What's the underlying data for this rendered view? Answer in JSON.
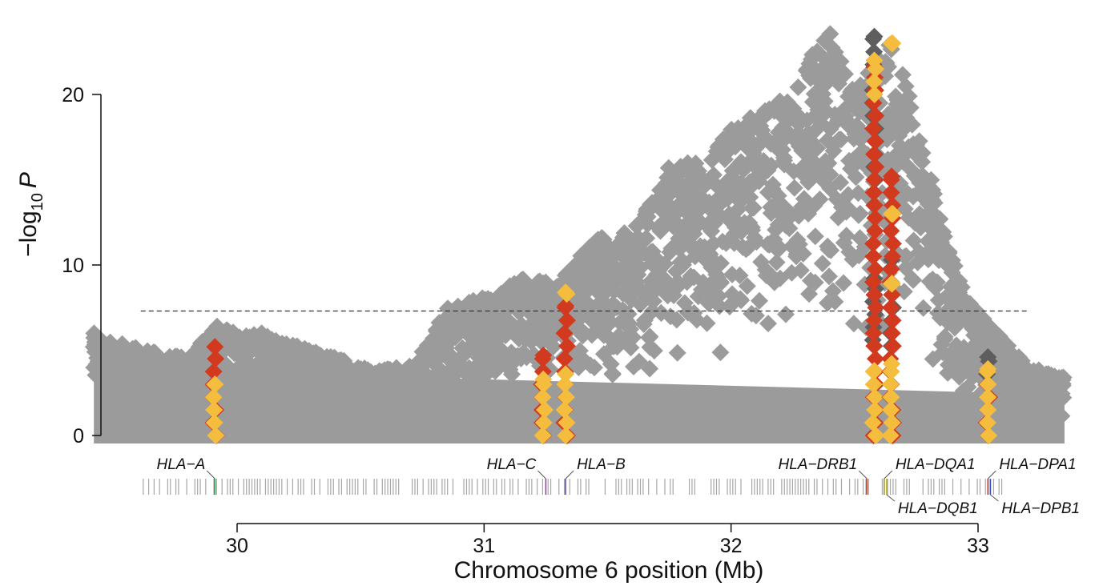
{
  "chart_data": {
    "type": "scatter",
    "title": "",
    "xlabel": "Chromosome 6 position (Mb)",
    "ylabel_parts": [
      "−log",
      "10",
      "P"
    ],
    "xlim": [
      29.42,
      33.35
    ],
    "ylim": [
      0,
      25
    ],
    "x_ticks": [
      30,
      31,
      32,
      33
    ],
    "x_tick_labels": [
      "30",
      "31",
      "32",
      "33"
    ],
    "y_ticks": [
      0,
      10,
      20
    ],
    "y_tick_labels": [
      "0",
      "10",
      "20"
    ],
    "significance_threshold": 7.3,
    "grid": false,
    "legend": "none",
    "colors": {
      "background_variants": "#9b9b9b",
      "dark_gray": "#5e5e5e",
      "red": "#d23a1f",
      "yellow": "#f4bd3d",
      "gene_tick": "#a6a6a6"
    },
    "highlight_columns": [
      {
        "x": 29.91,
        "top": 5.2,
        "groups": [
          {
            "color": "red",
            "min": 0,
            "max": 5.2
          },
          {
            "color": "yellow",
            "min": 0,
            "max": 3.0
          }
        ]
      },
      {
        "x": 31.24,
        "top": 4.7,
        "groups": [
          {
            "color": "red",
            "min": 0,
            "max": 4.7
          },
          {
            "color": "yellow",
            "min": 0,
            "max": 3.3
          }
        ]
      },
      {
        "x": 31.33,
        "top": 8.4,
        "groups": [
          {
            "color": "red",
            "min": 0,
            "max": 7.6
          },
          {
            "color": "yellow",
            "min": 0,
            "max": 3.6
          },
          {
            "color": "yellow",
            "min": 8.3,
            "max": 8.4
          }
        ]
      },
      {
        "x": 32.58,
        "top": 23.4,
        "groups": [
          {
            "color": "dark",
            "min": 13.5,
            "max": 23.4
          },
          {
            "color": "dark",
            "min": 5.6,
            "max": 9.2
          },
          {
            "color": "red",
            "min": 0,
            "max": 21.6
          },
          {
            "color": "yellow",
            "min": 0,
            "max": 3.8
          },
          {
            "color": "yellow",
            "min": 20.0,
            "max": 22.0
          }
        ]
      },
      {
        "x": 32.65,
        "top": 23.0,
        "groups": [
          {
            "color": "dark",
            "min": 4.5,
            "max": 10.3
          },
          {
            "color": "red",
            "min": 0,
            "max": 15.2
          },
          {
            "color": "yellow",
            "min": 0,
            "max": 4.2
          },
          {
            "color": "yellow",
            "min": 8.9,
            "max": 8.9
          },
          {
            "color": "yellow",
            "min": 13.0,
            "max": 13.0
          },
          {
            "color": "yellow",
            "min": 23.0,
            "max": 23.0
          }
        ]
      },
      {
        "x": 33.04,
        "top": 4.6,
        "groups": [
          {
            "color": "dark",
            "min": 3.6,
            "max": 4.6
          },
          {
            "color": "red",
            "min": 0,
            "max": 3.9
          },
          {
            "color": "yellow",
            "min": 0,
            "max": 3.9
          }
        ]
      }
    ],
    "gene_labels": [
      {
        "name": "HLA−A",
        "x": 29.91,
        "row": "top",
        "anchor": "end",
        "color": "#2e9e4f"
      },
      {
        "name": "HLA−C",
        "x": 31.25,
        "row": "top",
        "anchor": "end",
        "color": "#a03ca0"
      },
      {
        "name": "HLA−B",
        "x": 31.33,
        "row": "top",
        "anchor": "start",
        "color": "#6a4caf"
      },
      {
        "name": "HLA−DRB1",
        "x": 32.55,
        "row": "top",
        "anchor": "end",
        "color": "#d23a1f"
      },
      {
        "name": "HLA−DQA1",
        "x": 32.62,
        "row": "top",
        "anchor": "start",
        "color": "#8a9a1e"
      },
      {
        "name": "HLA−DQB1",
        "x": 32.63,
        "row": "bottom",
        "anchor": "start",
        "color": "#c9a227"
      },
      {
        "name": "HLA−DPA1",
        "x": 33.04,
        "row": "top",
        "anchor": "start",
        "color": "#c0392b"
      },
      {
        "name": "HLA−DPB1",
        "x": 33.05,
        "row": "bottom",
        "anchor": "start",
        "color": "#3a4bbf"
      }
    ]
  }
}
